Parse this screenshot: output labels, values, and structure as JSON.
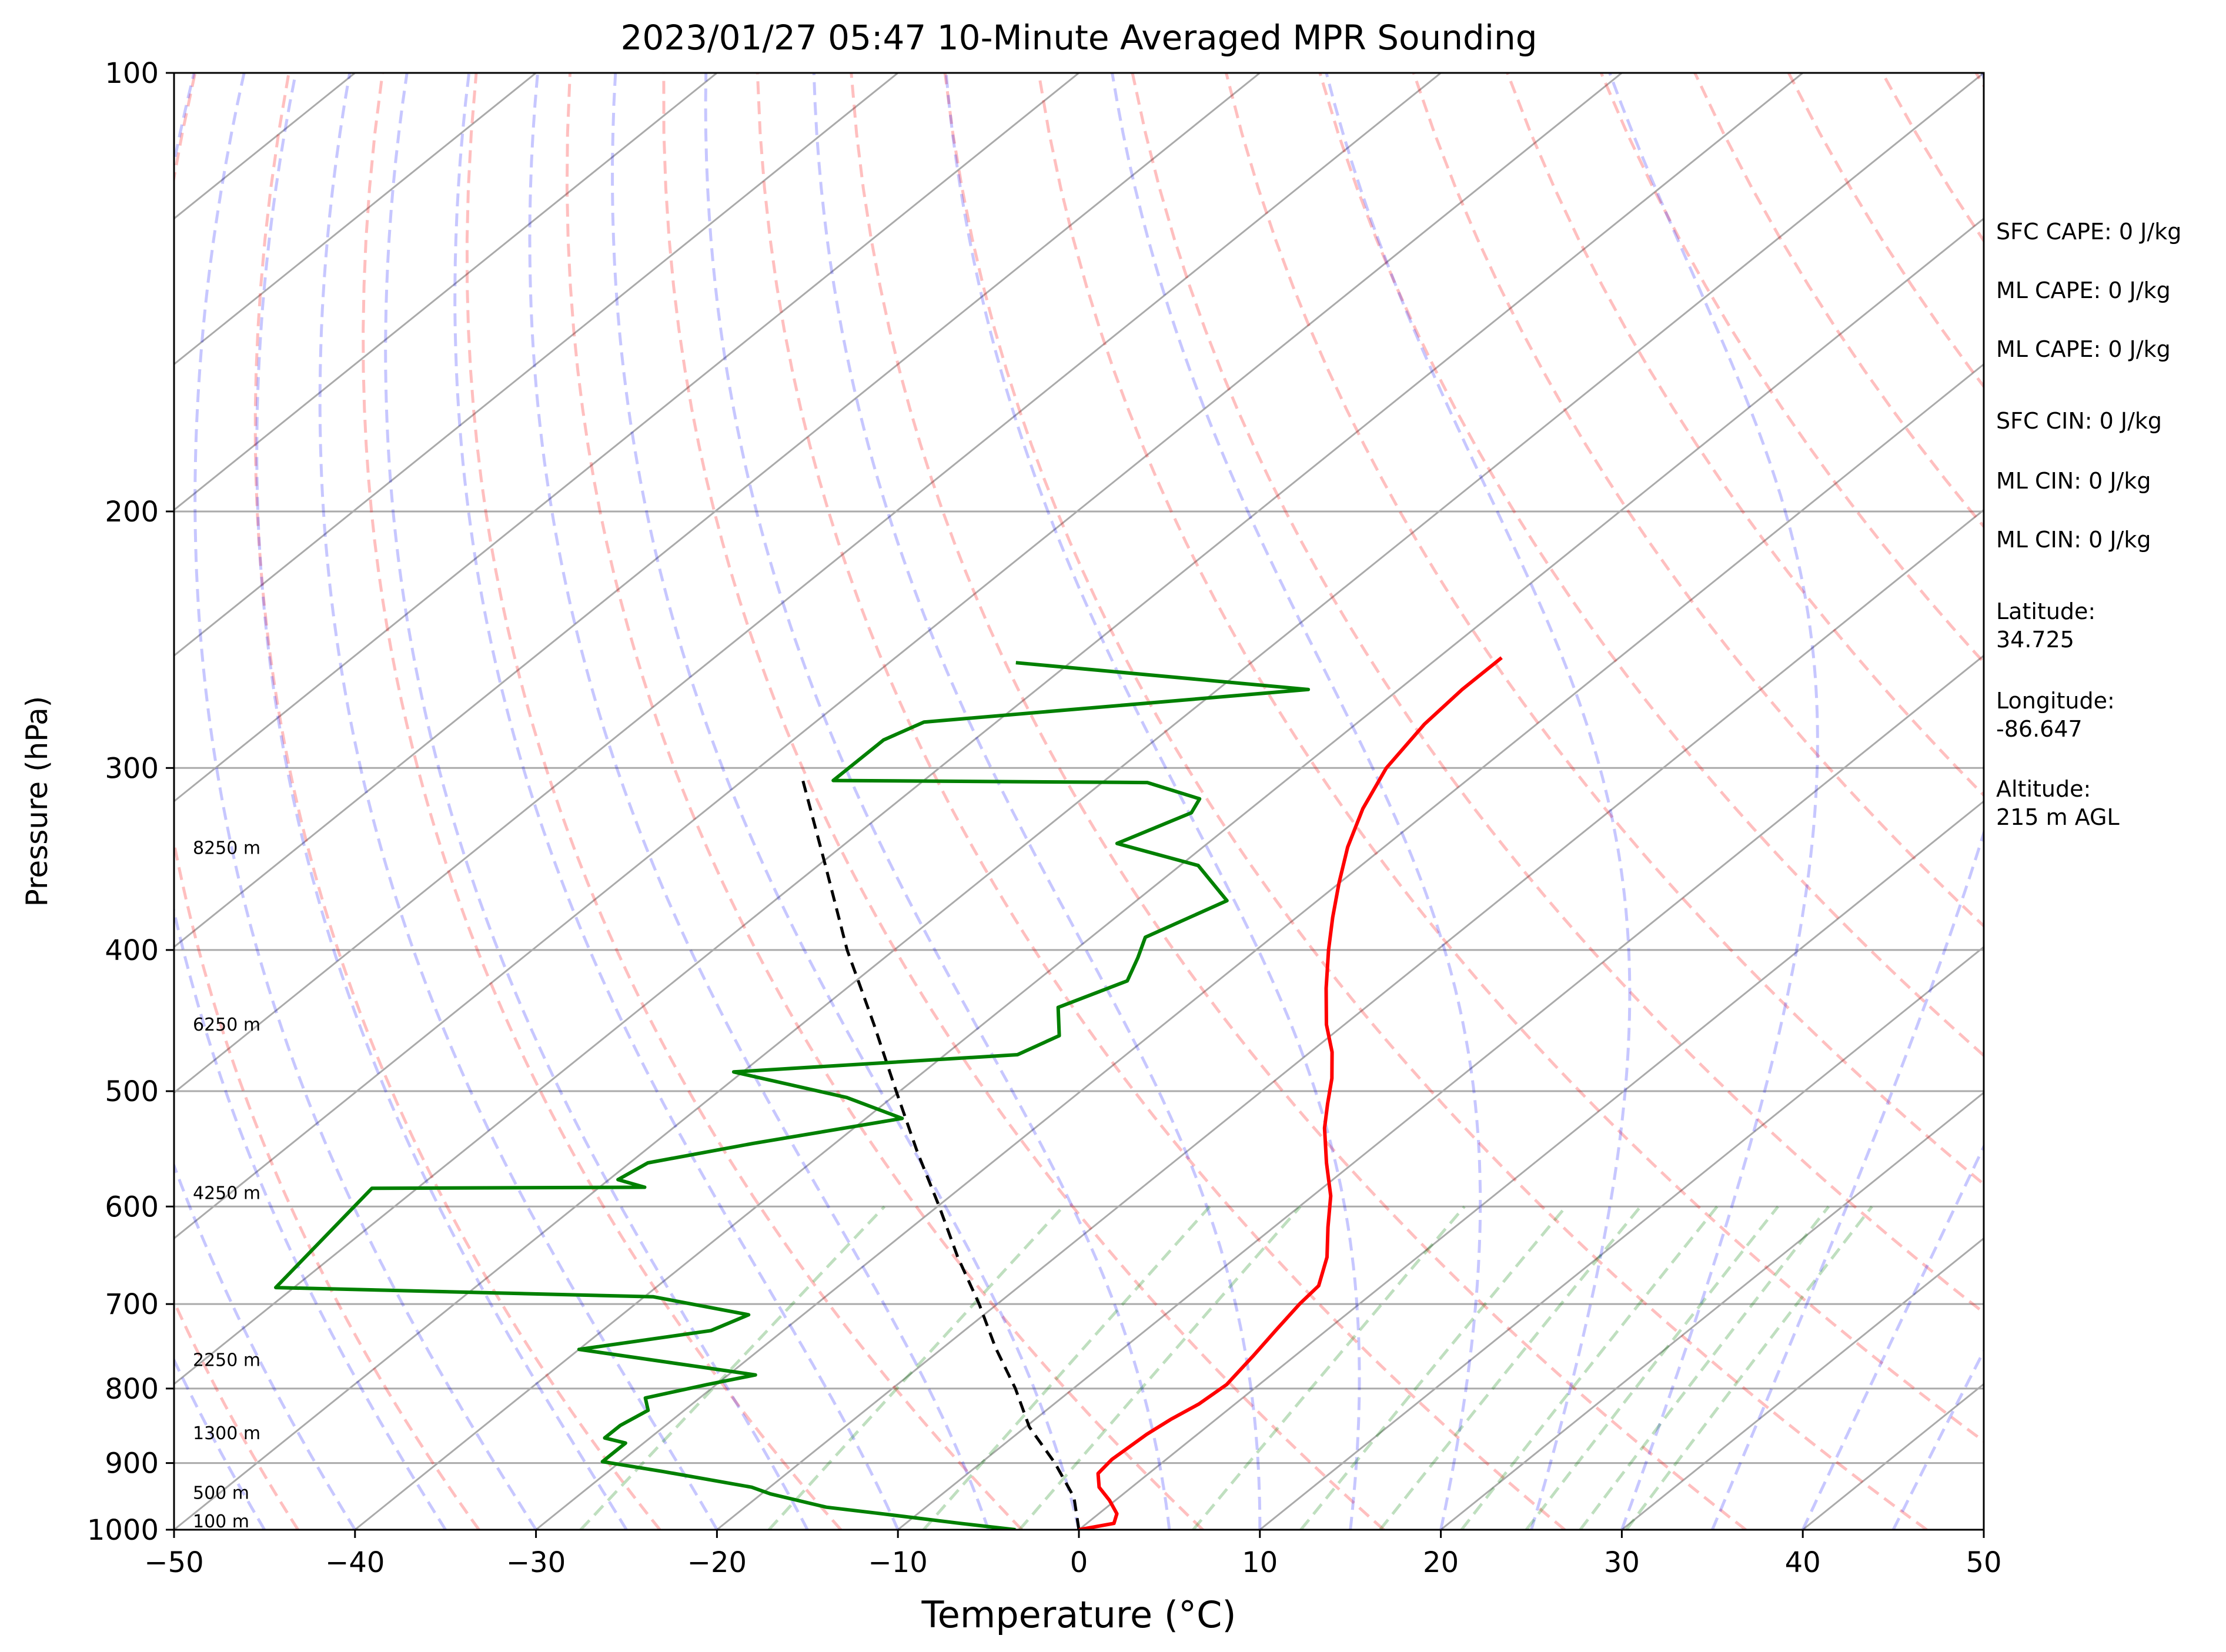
{
  "chart_data": {
    "type": "skew-t",
    "title": "2023/01/27 05:47 10-Minute Averaged MPR Sounding",
    "xlabel": "Temperature (°C)",
    "ylabel": "Pressure (hPa)",
    "xlim": [
      -50,
      50
    ],
    "ylim": [
      1000,
      100
    ],
    "y_scale": "log",
    "grid": true,
    "x_ticks": [
      "−50",
      "−40",
      "−30",
      "−20",
      "−10",
      "0",
      "10",
      "20",
      "30",
      "40",
      "50"
    ],
    "x_tick_values": [
      -50,
      -40,
      -30,
      -20,
      -10,
      0,
      10,
      20,
      30,
      40,
      50
    ],
    "y_ticks": [
      "100",
      "200",
      "300",
      "400",
      "500",
      "600",
      "700",
      "800",
      "900",
      "1000"
    ],
    "y_tick_values": [
      100,
      200,
      300,
      400,
      500,
      600,
      700,
      800,
      900,
      1000
    ],
    "temperature_profile": {
      "color": "#ff0000",
      "points": [
        {
          "p": 1000,
          "t": 0.0
        },
        {
          "p": 990,
          "t": 1.5
        },
        {
          "p": 975,
          "t": 1.0
        },
        {
          "p": 955,
          "t": -0.3
        },
        {
          "p": 935,
          "t": -1.8
        },
        {
          "p": 915,
          "t": -2.8
        },
        {
          "p": 895,
          "t": -3.0
        },
        {
          "p": 860,
          "t": -2.8
        },
        {
          "p": 840,
          "t": -2.5
        },
        {
          "p": 820,
          "t": -2.0
        },
        {
          "p": 795,
          "t": -1.8
        },
        {
          "p": 760,
          "t": -2.3
        },
        {
          "p": 730,
          "t": -2.8
        },
        {
          "p": 700,
          "t": -3.3
        },
        {
          "p": 680,
          "t": -3.5
        },
        {
          "p": 650,
          "t": -5.0
        },
        {
          "p": 620,
          "t": -7.0
        },
        {
          "p": 590,
          "t": -9.0
        },
        {
          "p": 560,
          "t": -11.5
        },
        {
          "p": 530,
          "t": -14.0
        },
        {
          "p": 510,
          "t": -15.5
        },
        {
          "p": 490,
          "t": -17.0
        },
        {
          "p": 470,
          "t": -18.8
        },
        {
          "p": 450,
          "t": -21.0
        },
        {
          "p": 425,
          "t": -23.5
        },
        {
          "p": 400,
          "t": -26.0
        },
        {
          "p": 380,
          "t": -28.0
        },
        {
          "p": 360,
          "t": -30.0
        },
        {
          "p": 340,
          "t": -32.0
        },
        {
          "p": 320,
          "t": -33.8
        },
        {
          "p": 300,
          "t": -35.3
        },
        {
          "p": 280,
          "t": -36.2
        },
        {
          "p": 265,
          "t": -36.5
        },
        {
          "p": 252,
          "t": -36.5
        }
      ]
    },
    "dewpoint_profile": {
      "color": "#008000",
      "points": [
        {
          "p": 1000,
          "t": -3.5
        },
        {
          "p": 990,
          "t": -7.0
        },
        {
          "p": 975,
          "t": -12.0
        },
        {
          "p": 965,
          "t": -15.5
        },
        {
          "p": 945,
          "t": -19.5
        },
        {
          "p": 935,
          "t": -21.0
        },
        {
          "p": 912,
          "t": -27.0
        },
        {
          "p": 898,
          "t": -31.0
        },
        {
          "p": 885,
          "t": -31.0
        },
        {
          "p": 872,
          "t": -31.0
        },
        {
          "p": 865,
          "t": -32.5
        },
        {
          "p": 848,
          "t": -32.5
        },
        {
          "p": 828,
          "t": -32.0
        },
        {
          "p": 812,
          "t": -33.0
        },
        {
          "p": 795,
          "t": -30.5
        },
        {
          "p": 783,
          "t": -28.5
        },
        {
          "p": 752,
          "t": -40.0
        },
        {
          "p": 730,
          "t": -34.0
        },
        {
          "p": 712,
          "t": -33.0
        },
        {
          "p": 692,
          "t": -39.5
        },
        {
          "p": 682,
          "t": -61.0
        },
        {
          "p": 583,
          "t": -62.5
        },
        {
          "p": 582,
          "t": -47.5
        },
        {
          "p": 575,
          "t": -49.5
        },
        {
          "p": 560,
          "t": -49.0
        },
        {
          "p": 543,
          "t": -44.5
        },
        {
          "p": 522,
          "t": -38.0
        },
        {
          "p": 505,
          "t": -42.5
        },
        {
          "p": 485,
          "t": -50.5
        },
        {
          "p": 472,
          "t": -36.0
        },
        {
          "p": 458,
          "t": -35.0
        },
        {
          "p": 438,
          "t": -37.0
        },
        {
          "p": 420,
          "t": -35.0
        },
        {
          "p": 405,
          "t": -36.0
        },
        {
          "p": 392,
          "t": -37.0
        },
        {
          "p": 370,
          "t": -35.0
        },
        {
          "p": 350,
          "t": -39.0
        },
        {
          "p": 338,
          "t": -45.0
        },
        {
          "p": 322,
          "t": -43.0
        },
        {
          "p": 315,
          "t": -43.5
        },
        {
          "p": 307,
          "t": -47.5
        },
        {
          "p": 306,
          "t": -65.0
        },
        {
          "p": 287,
          "t": -65.0
        },
        {
          "p": 279,
          "t": -64.0
        },
        {
          "p": 265,
          "t": -45.0
        },
        {
          "p": 254,
          "t": -63.0
        }
      ]
    },
    "parcel_profile": {
      "color": "#000000",
      "points": [
        {
          "p": 1000,
          "t": 0.0
        },
        {
          "p": 950,
          "t": -2.5
        },
        {
          "p": 900,
          "t": -5.9
        },
        {
          "p": 850,
          "t": -9.8
        },
        {
          "p": 800,
          "t": -13.2
        },
        {
          "p": 750,
          "t": -17.1
        },
        {
          "p": 700,
          "t": -21.0
        },
        {
          "p": 650,
          "t": -25.4
        },
        {
          "p": 600,
          "t": -29.9
        },
        {
          "p": 550,
          "t": -34.9
        },
        {
          "p": 500,
          "t": -40.2
        },
        {
          "p": 450,
          "t": -46.0
        },
        {
          "p": 400,
          "t": -52.6
        },
        {
          "p": 350,
          "t": -59.6
        },
        {
          "p": 303,
          "t": -67.2
        }
      ]
    },
    "height_labels": [
      {
        "label": "100 m",
        "p": 1000
      },
      {
        "label": "500 m",
        "p": 956
      },
      {
        "label": "1300 m",
        "p": 870
      },
      {
        "label": "2250 m",
        "p": 775
      },
      {
        "label": "4250 m",
        "p": 595
      },
      {
        "label": "6250 m",
        "p": 456
      },
      {
        "label": "8250 m",
        "p": 345
      }
    ],
    "dry_adiabats_theta_K": [
      230,
      240,
      250,
      260,
      270,
      280,
      290,
      300,
      310,
      320,
      330,
      340,
      350,
      360,
      370,
      380,
      390,
      400,
      410,
      420,
      430,
      440,
      450,
      460,
      470,
      480
    ],
    "dry_adiabat_color": "#ff0000",
    "moist_adiabats_start_C": [
      -45,
      -40,
      -35,
      -30,
      -25,
      -20,
      -15,
      -10,
      -5,
      0,
      5,
      10,
      15,
      20,
      25,
      30,
      35,
      40,
      45
    ],
    "moist_adiabat_color": "#0000ff",
    "mixing_ratio_lines_gkg": [
      0.4,
      1,
      2,
      3,
      6,
      9,
      12,
      16,
      20,
      24,
      28
    ],
    "mixing_ratio_color": "#008000"
  },
  "info": {
    "sfc_cape": "SFC CAPE: 0 J/kg",
    "ml_cape_1": "ML CAPE: 0 J/kg",
    "ml_cape_2": "ML CAPE: 0 J/kg",
    "sfc_cin": "SFC CIN: 0 J/kg",
    "ml_cin_1": "ML CIN: 0 J/kg",
    "ml_cin_2": "ML CIN: 0 J/kg",
    "latitude": "Latitude:\n34.725",
    "longitude": "Longitude:\n-86.647",
    "altitude": "Altitude:\n215 m AGL"
  }
}
